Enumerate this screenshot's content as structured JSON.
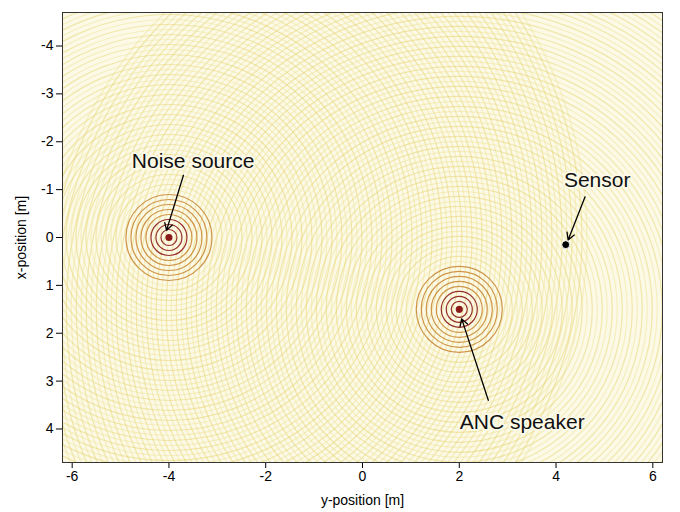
{
  "chart_data": {
    "type": "scatter",
    "xlabel": "y-position [m]",
    "ylabel": "x-position [m]",
    "xlim": [
      -6.2,
      6.2
    ],
    "ylim": [
      4.7,
      -4.7
    ],
    "xticks": [
      -6,
      -4,
      -2,
      0,
      2,
      4,
      6
    ],
    "yticks": [
      -4,
      -3,
      -2,
      -1,
      0,
      1,
      2,
      3,
      4
    ],
    "points": [
      {
        "label": "Noise source",
        "x": -4,
        "y": 0,
        "marker": "rings",
        "color": "#8b1a1a"
      },
      {
        "label": "ANC speaker",
        "x": 2,
        "y": 1.5,
        "marker": "rings",
        "color": "#8b1a1a"
      },
      {
        "label": "Sensor",
        "x": 4.2,
        "y": 0.15,
        "marker": "dot",
        "color": "#000000"
      }
    ]
  }
}
